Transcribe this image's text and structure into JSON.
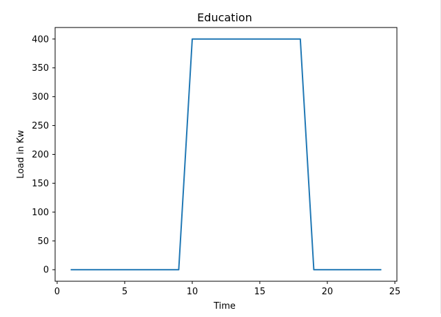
{
  "chart_data": {
    "type": "line",
    "title": "Education",
    "xlabel": "Time",
    "ylabel": "Load in Kw",
    "xlim": [
      -0.15,
      25.15
    ],
    "ylim": [
      -20,
      420
    ],
    "xticks": [
      0,
      5,
      10,
      15,
      20,
      25
    ],
    "yticks": [
      0,
      50,
      100,
      150,
      200,
      250,
      300,
      350,
      400
    ],
    "grid": false,
    "series": [
      {
        "color": "#1f77b4",
        "x": [
          1,
          2,
          3,
          4,
          5,
          6,
          7,
          8,
          9,
          10,
          11,
          12,
          13,
          14,
          15,
          16,
          17,
          18,
          19,
          20,
          21,
          22,
          23,
          24
        ],
        "values": [
          0,
          0,
          0,
          0,
          0,
          0,
          0,
          0,
          0,
          400,
          400,
          400,
          400,
          400,
          400,
          400,
          400,
          400,
          0,
          0,
          0,
          0,
          0,
          0
        ]
      }
    ]
  }
}
